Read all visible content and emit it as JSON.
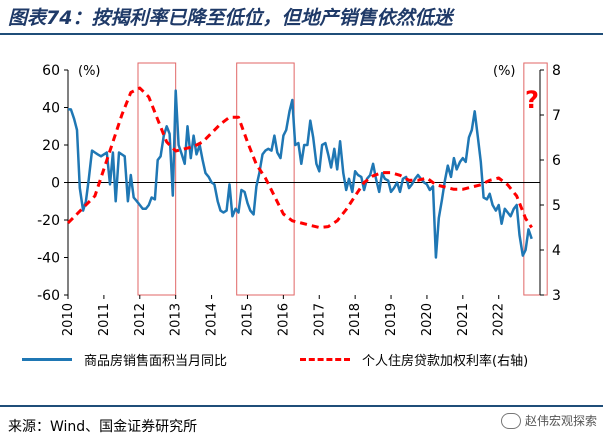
{
  "header": {
    "title": "图表74：按揭利率已降至低位，但地产销售依然低迷"
  },
  "footer": {
    "source": "来源：Wind、国金证券研究所",
    "watermark": "赵伟宏观探索"
  },
  "colors": {
    "sales": "#1f77b4",
    "rate": "#ff0000",
    "title": "#1f3a68",
    "box": "#e06666"
  },
  "chart_data": {
    "type": "line",
    "title": "按揭利率已降至低位，但地产销售依然低迷",
    "left_axis": {
      "unit_label": "(%)",
      "range": [
        -60,
        60
      ],
      "ticks": [
        "60",
        "40",
        "20",
        "0",
        "-20",
        "-40",
        "-60"
      ]
    },
    "right_axis": {
      "unit_label": "(%)",
      "range": [
        3,
        8
      ],
      "ticks": [
        "8",
        "7",
        "6",
        "5",
        "4",
        "3"
      ]
    },
    "x_ticks": [
      "2010",
      "2011",
      "2012",
      "2013",
      "2014",
      "2015",
      "2016",
      "2017",
      "2018",
      "2019",
      "2020",
      "2021",
      "2022"
    ],
    "annotation": "?",
    "highlight_periods": [
      [
        2011.95,
        2013.0
      ],
      [
        2014.7,
        2016.3
      ],
      [
        2022.7,
        2023.35
      ]
    ],
    "series": [
      {
        "name": "商品房销售面积当月同比",
        "axis": "left",
        "points": [
          [
            2010.0,
            39
          ],
          [
            2010.08,
            39
          ],
          [
            2010.17,
            34
          ],
          [
            2010.25,
            28
          ],
          [
            2010.33,
            -3
          ],
          [
            2010.42,
            -15
          ],
          [
            2010.5,
            -10
          ],
          [
            2010.58,
            2
          ],
          [
            2010.67,
            17
          ],
          [
            2010.75,
            16
          ],
          [
            2010.83,
            15
          ],
          [
            2010.92,
            14
          ],
          [
            2011.0,
            15
          ],
          [
            2011.08,
            16
          ],
          [
            2011.17,
            -1
          ],
          [
            2011.25,
            16
          ],
          [
            2011.33,
            -10
          ],
          [
            2011.42,
            16
          ],
          [
            2011.5,
            15
          ],
          [
            2011.58,
            14
          ],
          [
            2011.67,
            -10
          ],
          [
            2011.75,
            4
          ],
          [
            2011.83,
            -8
          ],
          [
            2011.92,
            -10
          ],
          [
            2012.0,
            -12
          ],
          [
            2012.08,
            -14
          ],
          [
            2012.17,
            -14
          ],
          [
            2012.25,
            -12
          ],
          [
            2012.33,
            -8
          ],
          [
            2012.42,
            -9
          ],
          [
            2012.5,
            12
          ],
          [
            2012.58,
            14
          ],
          [
            2012.67,
            25
          ],
          [
            2012.75,
            30
          ],
          [
            2012.83,
            26
          ],
          [
            2012.92,
            -7
          ],
          [
            2013.0,
            49
          ],
          [
            2013.08,
            20
          ],
          [
            2013.17,
            15
          ],
          [
            2013.25,
            10
          ],
          [
            2013.33,
            30
          ],
          [
            2013.42,
            13
          ],
          [
            2013.5,
            25
          ],
          [
            2013.58,
            15
          ],
          [
            2013.67,
            20
          ],
          [
            2013.75,
            12
          ],
          [
            2013.83,
            5
          ],
          [
            2013.92,
            3
          ],
          [
            2014.0,
            0
          ],
          [
            2014.08,
            -1
          ],
          [
            2014.17,
            -10
          ],
          [
            2014.25,
            -15
          ],
          [
            2014.33,
            -16
          ],
          [
            2014.42,
            -15
          ],
          [
            2014.5,
            -1
          ],
          [
            2014.58,
            -18
          ],
          [
            2014.67,
            -14
          ],
          [
            2014.75,
            -16
          ],
          [
            2014.83,
            -4
          ],
          [
            2014.92,
            -5
          ],
          [
            2015.0,
            -11
          ],
          [
            2015.08,
            -15
          ],
          [
            2015.17,
            -17
          ],
          [
            2015.25,
            -2
          ],
          [
            2015.33,
            5
          ],
          [
            2015.42,
            15
          ],
          [
            2015.5,
            17
          ],
          [
            2015.58,
            18
          ],
          [
            2015.67,
            17
          ],
          [
            2015.75,
            25
          ],
          [
            2015.83,
            16
          ],
          [
            2015.92,
            13
          ],
          [
            2016.0,
            25
          ],
          [
            2016.08,
            28
          ],
          [
            2016.17,
            38
          ],
          [
            2016.25,
            44
          ],
          [
            2016.33,
            20
          ],
          [
            2016.42,
            21
          ],
          [
            2016.5,
            10
          ],
          [
            2016.58,
            20
          ],
          [
            2016.67,
            20
          ],
          [
            2016.75,
            33
          ],
          [
            2016.83,
            24
          ],
          [
            2016.92,
            10
          ],
          [
            2017.0,
            6
          ],
          [
            2017.08,
            20
          ],
          [
            2017.17,
            21
          ],
          [
            2017.25,
            15
          ],
          [
            2017.33,
            8
          ],
          [
            2017.42,
            18
          ],
          [
            2017.5,
            7
          ],
          [
            2017.58,
            22
          ],
          [
            2017.67,
            5
          ],
          [
            2017.75,
            -4
          ],
          [
            2017.83,
            2
          ],
          [
            2017.92,
            -5
          ],
          [
            2018.0,
            6
          ],
          [
            2018.08,
            4
          ],
          [
            2018.17,
            3
          ],
          [
            2018.25,
            -4
          ],
          [
            2018.33,
            2
          ],
          [
            2018.42,
            4
          ],
          [
            2018.5,
            10
          ],
          [
            2018.58,
            2
          ],
          [
            2018.67,
            -5
          ],
          [
            2018.75,
            5
          ],
          [
            2018.83,
            2
          ],
          [
            2018.92,
            1
          ],
          [
            2019.0,
            -5
          ],
          [
            2019.08,
            -3
          ],
          [
            2019.17,
            0
          ],
          [
            2019.25,
            -5
          ],
          [
            2019.33,
            2
          ],
          [
            2019.42,
            3
          ],
          [
            2019.5,
            -3
          ],
          [
            2019.58,
            -1
          ],
          [
            2019.67,
            2
          ],
          [
            2019.75,
            4
          ],
          [
            2019.83,
            2
          ],
          [
            2019.92,
            0
          ],
          [
            2020.0,
            -1
          ],
          [
            2020.08,
            -4
          ],
          [
            2020.17,
            -2
          ],
          [
            2020.25,
            -40
          ],
          [
            2020.33,
            -19
          ],
          [
            2020.42,
            -9
          ],
          [
            2020.5,
            1
          ],
          [
            2020.58,
            9
          ],
          [
            2020.67,
            3
          ],
          [
            2020.75,
            13
          ],
          [
            2020.83,
            7
          ],
          [
            2020.92,
            11
          ],
          [
            2021.0,
            13
          ],
          [
            2021.08,
            11
          ],
          [
            2021.17,
            24
          ],
          [
            2021.25,
            28
          ],
          [
            2021.33,
            38
          ],
          [
            2021.42,
            24
          ],
          [
            2021.5,
            11
          ],
          [
            2021.58,
            -8
          ],
          [
            2021.67,
            -9
          ],
          [
            2021.75,
            -6
          ],
          [
            2021.83,
            -12
          ],
          [
            2021.92,
            -15
          ],
          [
            2022.0,
            -12
          ],
          [
            2022.08,
            -22
          ],
          [
            2022.17,
            -14
          ],
          [
            2022.25,
            -16
          ],
          [
            2022.33,
            -18
          ],
          [
            2022.42,
            -14
          ],
          [
            2022.5,
            -12
          ],
          [
            2022.58,
            -28
          ],
          [
            2022.67,
            -39
          ],
          [
            2022.75,
            -36
          ],
          [
            2022.83,
            -25
          ],
          [
            2022.92,
            -30
          ]
        ]
      },
      {
        "name": "个人住房贷款加权利率(右轴)",
        "axis": "right",
        "points": [
          [
            2010.0,
            4.6
          ],
          [
            2010.25,
            4.8
          ],
          [
            2010.5,
            5.0
          ],
          [
            2010.75,
            5.2
          ],
          [
            2011.0,
            5.8
          ],
          [
            2011.25,
            6.4
          ],
          [
            2011.5,
            7.0
          ],
          [
            2011.75,
            7.5
          ],
          [
            2012.0,
            7.6
          ],
          [
            2012.25,
            7.4
          ],
          [
            2012.5,
            6.9
          ],
          [
            2012.75,
            6.4
          ],
          [
            2013.0,
            6.2
          ],
          [
            2013.25,
            6.25
          ],
          [
            2013.5,
            6.3
          ],
          [
            2013.75,
            6.4
          ],
          [
            2014.0,
            6.6
          ],
          [
            2014.25,
            6.8
          ],
          [
            2014.5,
            6.95
          ],
          [
            2014.75,
            6.95
          ],
          [
            2015.0,
            6.4
          ],
          [
            2015.25,
            5.9
          ],
          [
            2015.5,
            5.6
          ],
          [
            2015.75,
            5.2
          ],
          [
            2016.0,
            4.8
          ],
          [
            2016.25,
            4.65
          ],
          [
            2016.5,
            4.6
          ],
          [
            2016.75,
            4.55
          ],
          [
            2017.0,
            4.5
          ],
          [
            2017.25,
            4.52
          ],
          [
            2017.5,
            4.65
          ],
          [
            2017.75,
            4.9
          ],
          [
            2018.0,
            5.2
          ],
          [
            2018.25,
            5.5
          ],
          [
            2018.5,
            5.65
          ],
          [
            2018.75,
            5.72
          ],
          [
            2019.0,
            5.72
          ],
          [
            2019.25,
            5.66
          ],
          [
            2019.5,
            5.55
          ],
          [
            2019.75,
            5.55
          ],
          [
            2020.0,
            5.6
          ],
          [
            2020.25,
            5.45
          ],
          [
            2020.5,
            5.4
          ],
          [
            2020.75,
            5.35
          ],
          [
            2021.0,
            5.35
          ],
          [
            2021.25,
            5.4
          ],
          [
            2021.5,
            5.45
          ],
          [
            2021.75,
            5.55
          ],
          [
            2022.0,
            5.6
          ],
          [
            2022.25,
            5.45
          ],
          [
            2022.5,
            5.2
          ],
          [
            2022.75,
            4.7
          ],
          [
            2022.92,
            4.5
          ]
        ]
      }
    ]
  },
  "legend": {
    "sales_label": "商品房销售面积当月同比",
    "rate_label": "个人住房贷款加权利率(右轴)"
  }
}
